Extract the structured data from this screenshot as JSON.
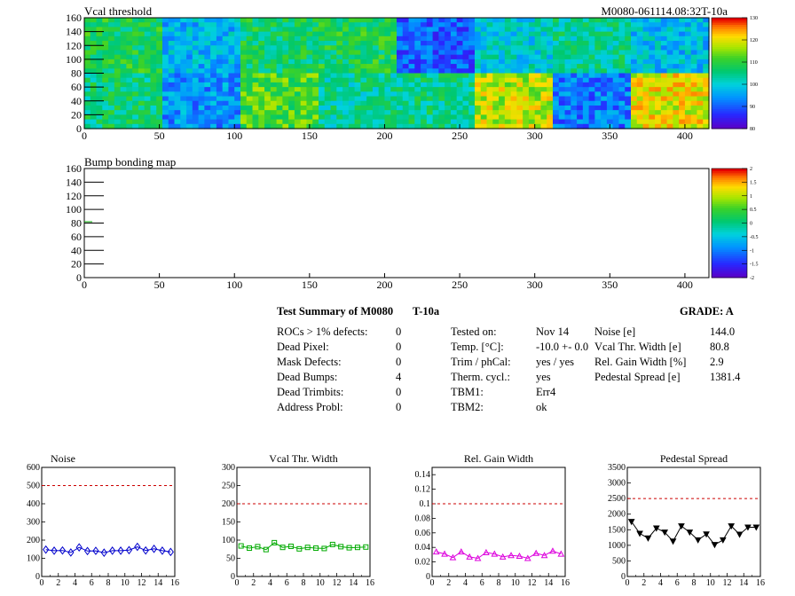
{
  "maps": [
    {
      "title": "Vcal threshold",
      "id_label": "M0080-061114.08:32T-10a",
      "yticks": [
        "0",
        "20",
        "40",
        "60",
        "80",
        "100",
        "120",
        "140",
        "160"
      ],
      "xticks": [
        "0",
        "50",
        "100",
        "150",
        "200",
        "250",
        "300",
        "350",
        "400"
      ],
      "z_ticks": [
        "80",
        "90",
        "100",
        "110",
        "120",
        "130"
      ],
      "z_range": [
        80,
        130
      ],
      "rocs_top_mean": [
        108,
        97,
        107,
        108,
        90,
        100,
        104,
        98
      ],
      "rocs_bottom_mean": [
        106,
        94,
        112,
        104,
        105,
        118,
        92,
        120
      ]
    },
    {
      "title": "Bump bonding map",
      "yticks": [
        "0",
        "20",
        "40",
        "60",
        "80",
        "100",
        "120",
        "140",
        "160"
      ],
      "xticks": [
        "0",
        "50",
        "100",
        "150",
        "200",
        "250",
        "300",
        "350",
        "400"
      ],
      "z_ticks": [
        "-2",
        "-1.5",
        "-1",
        "-0.5",
        "0",
        "0.5",
        "1",
        "1.5",
        "2"
      ],
      "z_range": [
        -2,
        2
      ]
    }
  ],
  "summary": {
    "header": "Test Summary of M0080",
    "temp_label": "T-10a",
    "grade": "GRADE:  A",
    "col1_labels": [
      "ROCs > 1% defects:",
      "Dead Pixel:",
      "Mask Defects:",
      "Dead Bumps:",
      "Dead Trimbits:",
      "Address Probl:"
    ],
    "col1_values": [
      "0",
      "0",
      "0",
      "4",
      "0",
      "0"
    ],
    "col2_labels": [
      "Tested on:",
      "Temp. [°C]:",
      "Trim / phCal:",
      "Therm. cycl.:",
      "TBM1:",
      "TBM2:"
    ],
    "col2_values": [
      "Nov 14",
      "-10.0 +- 0.0",
      "yes / yes",
      "yes",
      "Err4",
      "ok"
    ],
    "col3_labels": [
      "Noise [e]",
      "Vcal Thr. Width [e]",
      "Rel. Gain Width [%]",
      "Pedestal Spread [e]"
    ],
    "col3_values": [
      "144.0",
      "80.8",
      "2.9",
      "1381.4"
    ]
  },
  "chart_data": [
    {
      "type": "line",
      "title": "Noise",
      "x": [
        0,
        1,
        2,
        3,
        4,
        5,
        6,
        7,
        8,
        9,
        10,
        11,
        12,
        13,
        14,
        15
      ],
      "values": [
        148,
        142,
        143,
        132,
        160,
        140,
        141,
        131,
        142,
        142,
        145,
        163,
        143,
        152,
        142,
        135
      ],
      "ylim": [
        0,
        600
      ],
      "yticks": [
        "0",
        "100",
        "200",
        "300",
        "400",
        "500",
        "600"
      ],
      "xticks": [
        "0",
        "2",
        "4",
        "6",
        "8",
        "10",
        "12",
        "14",
        "16"
      ],
      "threshold": 500,
      "marker": "diamond",
      "color": "#0000cc"
    },
    {
      "type": "line",
      "title": "Vcal Thr. Width",
      "x": [
        0,
        1,
        2,
        3,
        4,
        5,
        6,
        7,
        8,
        9,
        10,
        11,
        12,
        13,
        14,
        15
      ],
      "values": [
        84,
        78,
        82,
        74,
        93,
        80,
        83,
        76,
        80,
        78,
        77,
        88,
        82,
        79,
        80,
        81
      ],
      "ylim": [
        0,
        300
      ],
      "yticks": [
        "0",
        "50",
        "100",
        "150",
        "200",
        "250",
        "300"
      ],
      "xticks": [
        "0",
        "2",
        "4",
        "6",
        "8",
        "10",
        "12",
        "14",
        "16"
      ],
      "threshold": 200,
      "marker": "square",
      "color": "#00aa00"
    },
    {
      "type": "line",
      "title": "Rel. Gain Width",
      "x": [
        0,
        1,
        2,
        3,
        4,
        5,
        6,
        7,
        8,
        9,
        10,
        11,
        12,
        13,
        14,
        15
      ],
      "values": [
        0.034,
        0.031,
        0.026,
        0.034,
        0.027,
        0.025,
        0.033,
        0.031,
        0.027,
        0.029,
        0.028,
        0.025,
        0.032,
        0.029,
        0.035,
        0.031
      ],
      "ylim": [
        0,
        0.15
      ],
      "yticks": [
        "0",
        "0.02",
        "0.04",
        "0.06",
        "0.08",
        "0.1",
        "0.12",
        "0.14"
      ],
      "ytickvals": [
        0,
        0.02,
        0.04,
        0.06,
        0.08,
        0.1,
        0.12,
        0.14
      ],
      "xticks": [
        "0",
        "2",
        "4",
        "6",
        "8",
        "10",
        "12",
        "14",
        "16"
      ],
      "threshold": 0.1,
      "marker": "triangle",
      "color": "#dd00dd"
    },
    {
      "type": "line",
      "title": "Pedestal Spread",
      "x": [
        0,
        1,
        2,
        3,
        4,
        5,
        6,
        7,
        8,
        9,
        10,
        11,
        12,
        13,
        14,
        15
      ],
      "values": [
        1760,
        1380,
        1230,
        1550,
        1420,
        1130,
        1620,
        1420,
        1170,
        1360,
        1020,
        1170,
        1620,
        1350,
        1580,
        1580
      ],
      "ylim": [
        0,
        3500
      ],
      "yticks": [
        "0",
        "500",
        "1000",
        "1500",
        "2000",
        "2500",
        "3000",
        "3500"
      ],
      "xticks": [
        "0",
        "2",
        "4",
        "6",
        "8",
        "10",
        "12",
        "14",
        "16"
      ],
      "threshold": 2500,
      "marker": "triangle-down",
      "color": "#000000"
    }
  ]
}
